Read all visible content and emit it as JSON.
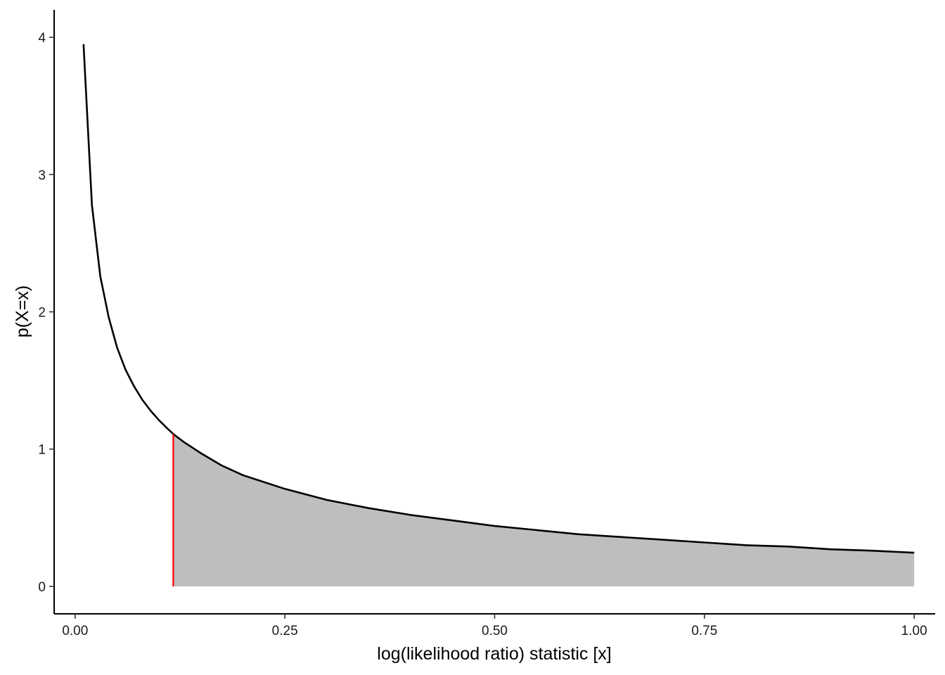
{
  "chart_data": {
    "type": "area",
    "title": "",
    "xlabel": "log(likelihood ratio) statistic [x]",
    "ylabel": "p(X=x)",
    "xlim": [
      -0.025,
      1.025
    ],
    "ylim": [
      -0.2,
      4.2
    ],
    "x_ticks": [
      0,
      0.25,
      0.5,
      0.75,
      1
    ],
    "x_tick_labels": [
      "0.00",
      "0.25",
      "0.50",
      "0.75",
      "1.00"
    ],
    "y_ticks": [
      0,
      1,
      2,
      3,
      4
    ],
    "y_tick_labels": [
      "0",
      "1",
      "2",
      "3",
      "4"
    ],
    "grid": false,
    "curve": {
      "x": [
        0.01,
        0.02,
        0.03,
        0.04,
        0.05,
        0.06,
        0.07,
        0.08,
        0.09,
        0.1,
        0.11,
        0.117,
        0.13,
        0.15,
        0.175,
        0.2,
        0.25,
        0.3,
        0.35,
        0.4,
        0.45,
        0.5,
        0.55,
        0.6,
        0.65,
        0.7,
        0.75,
        0.8,
        0.85,
        0.9,
        0.95,
        1.0
      ],
      "y": [
        3.95,
        2.78,
        2.26,
        1.96,
        1.74,
        1.58,
        1.46,
        1.36,
        1.28,
        1.21,
        1.15,
        1.11,
        1.05,
        0.97,
        0.88,
        0.81,
        0.71,
        0.63,
        0.57,
        0.52,
        0.48,
        0.44,
        0.41,
        0.38,
        0.36,
        0.34,
        0.32,
        0.3,
        0.29,
        0.27,
        0.26,
        0.245
      ]
    },
    "threshold_x": 0.117,
    "colors": {
      "curve": "#000000",
      "fill": "#bebebe",
      "threshold": "#ff0000"
    }
  }
}
